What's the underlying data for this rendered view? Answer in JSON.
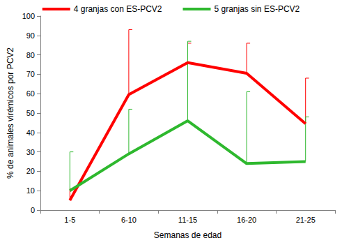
{
  "chart_data": {
    "type": "line",
    "x_label": "Semanas de edad",
    "y_label": "% de animales virémicos por PCV2",
    "categories": [
      "1-5",
      "6-10",
      "11-15",
      "16-20",
      "21-25"
    ],
    "series": [
      {
        "name": "4 granjas con ES-PCV2",
        "color": "#ff0000",
        "values": [
          5,
          59.5,
          76,
          70.5,
          44.5
        ],
        "errors": [
          6,
          33.5,
          10,
          15.5,
          23.5
        ]
      },
      {
        "name": "5 granjas sin ES-PCV2",
        "color": "#2eb82e",
        "values": [
          10,
          29,
          46,
          24,
          25
        ],
        "errors": [
          20,
          23,
          41,
          37,
          23
        ]
      }
    ],
    "ylim": [
      0,
      100
    ],
    "yticks": [
      0,
      10,
      20,
      30,
      40,
      50,
      60,
      70,
      80,
      90,
      100
    ],
    "grid": false,
    "legend": "top"
  }
}
